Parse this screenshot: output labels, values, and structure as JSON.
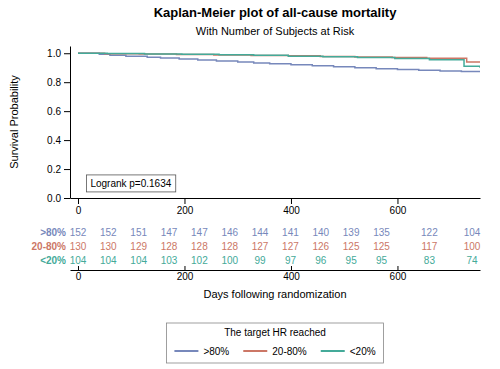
{
  "chart_data": {
    "type": "step",
    "title": "Kaplan-Meier plot of all-cause mortality",
    "subtitle": "With Number of Subjects at Risk",
    "xlabel": "Days following randomization",
    "ylabel": "Survival Probability",
    "annotation": "Logrank p=0.1634",
    "legend_title": "The target HR reached",
    "legend": "bottom",
    "grid": false,
    "xlim": [
      -15,
      755
    ],
    "ylim": [
      0.0,
      1.05
    ],
    "xticks": [
      0,
      200,
      400,
      600
    ],
    "yticks": [
      {
        "value": 0.0,
        "label": "0.0"
      },
      0.2,
      0.4,
      0.6,
      0.8,
      {
        "value": 1.0,
        "label": "1.0"
      }
    ],
    "series": [
      {
        "name": ">80%",
        "color": "#7788bb",
        "x": [
          0,
          10,
          40,
          55,
          60,
          75,
          90,
          110,
          130,
          145,
          155,
          170,
          190,
          210,
          225,
          240,
          260,
          285,
          300,
          315,
          330,
          345,
          360,
          380,
          400,
          420,
          440,
          460,
          480,
          500,
          520,
          540,
          560,
          580,
          600,
          620,
          640,
          660,
          680,
          700,
          720,
          740,
          755
        ],
        "values": [
          1.0,
          1.0,
          0.993,
          0.993,
          0.986,
          0.986,
          0.98,
          0.98,
          0.973,
          0.973,
          0.967,
          0.967,
          0.96,
          0.96,
          0.953,
          0.953,
          0.947,
          0.947,
          0.94,
          0.94,
          0.933,
          0.933,
          0.927,
          0.927,
          0.92,
          0.92,
          0.913,
          0.913,
          0.906,
          0.906,
          0.9,
          0.9,
          0.893,
          0.893,
          0.887,
          0.887,
          0.882,
          0.882,
          0.878,
          0.878,
          0.874,
          0.874,
          0.87
        ]
      },
      {
        "name": "20-80%",
        "color": "#cc7766",
        "x": [
          0,
          15,
          50,
          80,
          115,
          150,
          185,
          215,
          255,
          290,
          325,
          360,
          395,
          425,
          455,
          490,
          520,
          555,
          590,
          625,
          655,
          695,
          730,
          755
        ],
        "values": [
          1.0,
          1.0,
          0.997,
          0.997,
          0.994,
          0.994,
          0.991,
          0.991,
          0.988,
          0.988,
          0.985,
          0.985,
          0.982,
          0.982,
          0.978,
          0.978,
          0.974,
          0.974,
          0.97,
          0.97,
          0.965,
          0.965,
          0.94,
          0.934
        ]
      },
      {
        "name": "<20%",
        "color": "#44aa99",
        "x": [
          0,
          20,
          55,
          90,
          125,
          160,
          195,
          230,
          265,
          295,
          330,
          360,
          395,
          425,
          460,
          495,
          525,
          560,
          595,
          630,
          660,
          695,
          725,
          755
        ],
        "values": [
          1.0,
          1.0,
          0.998,
          0.998,
          0.995,
          0.995,
          0.993,
          0.993,
          0.99,
          0.99,
          0.986,
          0.986,
          0.98,
          0.98,
          0.975,
          0.975,
          0.97,
          0.97,
          0.963,
          0.963,
          0.955,
          0.955,
          0.91,
          0.9
        ]
      }
    ],
    "risk_table": {
      "x": [
        0,
        57,
        114,
        171,
        228,
        285,
        342,
        399,
        456,
        513,
        570,
        660,
        740
      ],
      "rows": [
        {
          "name": ">80%",
          "values": [
            152,
            152,
            151,
            147,
            147,
            146,
            144,
            141,
            140,
            139,
            135,
            122,
            104
          ]
        },
        {
          "name": "20-80%",
          "values": [
            130,
            130,
            129,
            128,
            128,
            128,
            127,
            127,
            126,
            125,
            125,
            117,
            100
          ]
        },
        {
          "name": "<20%",
          "values": [
            104,
            104,
            104,
            103,
            102,
            100,
            99,
            97,
            96,
            95,
            95,
            83,
            74
          ]
        }
      ]
    }
  }
}
